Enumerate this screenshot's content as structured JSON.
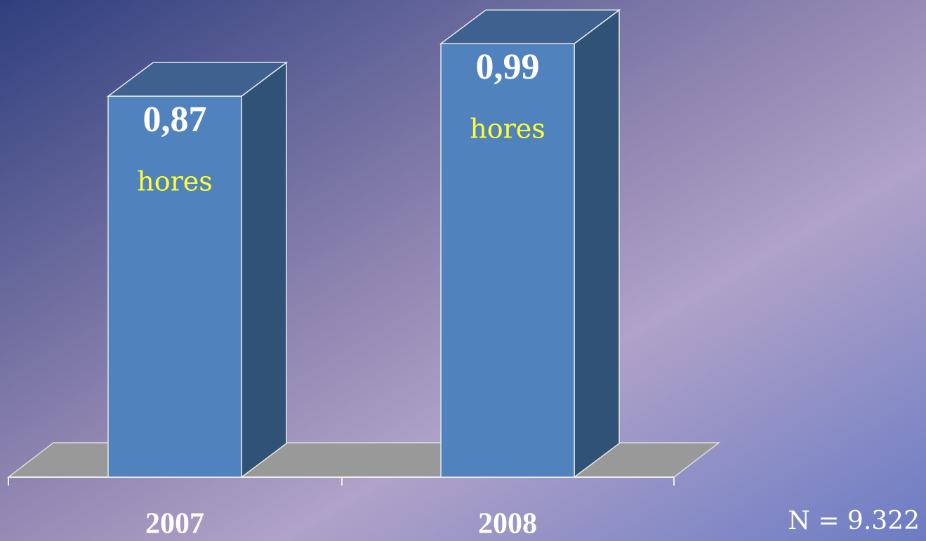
{
  "chart_data": {
    "type": "bar3d",
    "categories": [
      "2007",
      "2008"
    ],
    "values": [
      0.87,
      0.99
    ],
    "value_labels": [
      "0,87",
      "0,99"
    ],
    "unit_label": "hores",
    "annotation": "N = 9.322",
    "color": "#5082be",
    "ylim": [
      0,
      1
    ]
  }
}
